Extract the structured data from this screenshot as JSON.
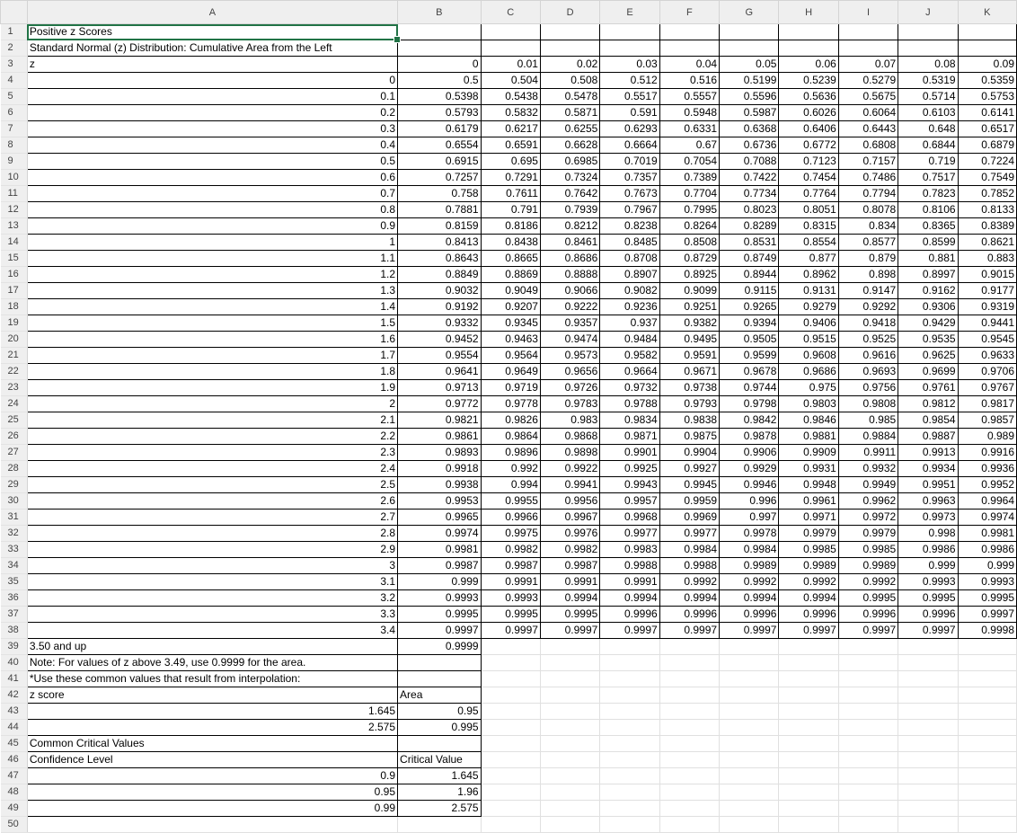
{
  "columns": [
    "A",
    "B",
    "C",
    "D",
    "E",
    "F",
    "G",
    "H",
    "I",
    "J",
    "K"
  ],
  "rows": [
    {
      "n": "1",
      "c": [
        "Positive z Scores"
      ]
    },
    {
      "n": "2",
      "c": [
        "Standard Normal (z) Distribution: Cumulative Area from the Left"
      ]
    },
    {
      "n": "3",
      "c": [
        "z",
        "0",
        "0.01",
        "0.02",
        "0.03",
        "0.04",
        "0.05",
        "0.06",
        "0.07",
        "0.08",
        "0.09"
      ]
    },
    {
      "n": "4",
      "c": [
        "0",
        "0.5",
        "0.504",
        "0.508",
        "0.512",
        "0.516",
        "0.5199",
        "0.5239",
        "0.5279",
        "0.5319",
        "0.5359"
      ]
    },
    {
      "n": "5",
      "c": [
        "0.1",
        "0.5398",
        "0.5438",
        "0.5478",
        "0.5517",
        "0.5557",
        "0.5596",
        "0.5636",
        "0.5675",
        "0.5714",
        "0.5753"
      ]
    },
    {
      "n": "6",
      "c": [
        "0.2",
        "0.5793",
        "0.5832",
        "0.5871",
        "0.591",
        "0.5948",
        "0.5987",
        "0.6026",
        "0.6064",
        "0.6103",
        "0.6141"
      ]
    },
    {
      "n": "7",
      "c": [
        "0.3",
        "0.6179",
        "0.6217",
        "0.6255",
        "0.6293",
        "0.6331",
        "0.6368",
        "0.6406",
        "0.6443",
        "0.648",
        "0.6517"
      ]
    },
    {
      "n": "8",
      "c": [
        "0.4",
        "0.6554",
        "0.6591",
        "0.6628",
        "0.6664",
        "0.67",
        "0.6736",
        "0.6772",
        "0.6808",
        "0.6844",
        "0.6879"
      ]
    },
    {
      "n": "9",
      "c": [
        "0.5",
        "0.6915",
        "0.695",
        "0.6985",
        "0.7019",
        "0.7054",
        "0.7088",
        "0.7123",
        "0.7157",
        "0.719",
        "0.7224"
      ]
    },
    {
      "n": "10",
      "c": [
        "0.6",
        "0.7257",
        "0.7291",
        "0.7324",
        "0.7357",
        "0.7389",
        "0.7422",
        "0.7454",
        "0.7486",
        "0.7517",
        "0.7549"
      ]
    },
    {
      "n": "11",
      "c": [
        "0.7",
        "0.758",
        "0.7611",
        "0.7642",
        "0.7673",
        "0.7704",
        "0.7734",
        "0.7764",
        "0.7794",
        "0.7823",
        "0.7852"
      ]
    },
    {
      "n": "12",
      "c": [
        "0.8",
        "0.7881",
        "0.791",
        "0.7939",
        "0.7967",
        "0.7995",
        "0.8023",
        "0.8051",
        "0.8078",
        "0.8106",
        "0.8133"
      ]
    },
    {
      "n": "13",
      "c": [
        "0.9",
        "0.8159",
        "0.8186",
        "0.8212",
        "0.8238",
        "0.8264",
        "0.8289",
        "0.8315",
        "0.834",
        "0.8365",
        "0.8389"
      ]
    },
    {
      "n": "14",
      "c": [
        "1",
        "0.8413",
        "0.8438",
        "0.8461",
        "0.8485",
        "0.8508",
        "0.8531",
        "0.8554",
        "0.8577",
        "0.8599",
        "0.8621"
      ]
    },
    {
      "n": "15",
      "c": [
        "1.1",
        "0.8643",
        "0.8665",
        "0.8686",
        "0.8708",
        "0.8729",
        "0.8749",
        "0.877",
        "0.879",
        "0.881",
        "0.883"
      ]
    },
    {
      "n": "16",
      "c": [
        "1.2",
        "0.8849",
        "0.8869",
        "0.8888",
        "0.8907",
        "0.8925",
        "0.8944",
        "0.8962",
        "0.898",
        "0.8997",
        "0.9015"
      ]
    },
    {
      "n": "17",
      "c": [
        "1.3",
        "0.9032",
        "0.9049",
        "0.9066",
        "0.9082",
        "0.9099",
        "0.9115",
        "0.9131",
        "0.9147",
        "0.9162",
        "0.9177"
      ]
    },
    {
      "n": "18",
      "c": [
        "1.4",
        "0.9192",
        "0.9207",
        "0.9222",
        "0.9236",
        "0.9251",
        "0.9265",
        "0.9279",
        "0.9292",
        "0.9306",
        "0.9319"
      ]
    },
    {
      "n": "19",
      "c": [
        "1.5",
        "0.9332",
        "0.9345",
        "0.9357",
        "0.937",
        "0.9382",
        "0.9394",
        "0.9406",
        "0.9418",
        "0.9429",
        "0.9441"
      ]
    },
    {
      "n": "20",
      "c": [
        "1.6",
        "0.9452",
        "0.9463",
        "0.9474",
        "0.9484",
        "0.9495",
        "0.9505",
        "0.9515",
        "0.9525",
        "0.9535",
        "0.9545"
      ]
    },
    {
      "n": "21",
      "c": [
        "1.7",
        "0.9554",
        "0.9564",
        "0.9573",
        "0.9582",
        "0.9591",
        "0.9599",
        "0.9608",
        "0.9616",
        "0.9625",
        "0.9633"
      ]
    },
    {
      "n": "22",
      "c": [
        "1.8",
        "0.9641",
        "0.9649",
        "0.9656",
        "0.9664",
        "0.9671",
        "0.9678",
        "0.9686",
        "0.9693",
        "0.9699",
        "0.9706"
      ]
    },
    {
      "n": "23",
      "c": [
        "1.9",
        "0.9713",
        "0.9719",
        "0.9726",
        "0.9732",
        "0.9738",
        "0.9744",
        "0.975",
        "0.9756",
        "0.9761",
        "0.9767"
      ]
    },
    {
      "n": "24",
      "c": [
        "2",
        "0.9772",
        "0.9778",
        "0.9783",
        "0.9788",
        "0.9793",
        "0.9798",
        "0.9803",
        "0.9808",
        "0.9812",
        "0.9817"
      ]
    },
    {
      "n": "25",
      "c": [
        "2.1",
        "0.9821",
        "0.9826",
        "0.983",
        "0.9834",
        "0.9838",
        "0.9842",
        "0.9846",
        "0.985",
        "0.9854",
        "0.9857"
      ]
    },
    {
      "n": "26",
      "c": [
        "2.2",
        "0.9861",
        "0.9864",
        "0.9868",
        "0.9871",
        "0.9875",
        "0.9878",
        "0.9881",
        "0.9884",
        "0.9887",
        "0.989"
      ]
    },
    {
      "n": "27",
      "c": [
        "2.3",
        "0.9893",
        "0.9896",
        "0.9898",
        "0.9901",
        "0.9904",
        "0.9906",
        "0.9909",
        "0.9911",
        "0.9913",
        "0.9916"
      ]
    },
    {
      "n": "28",
      "c": [
        "2.4",
        "0.9918",
        "0.992",
        "0.9922",
        "0.9925",
        "0.9927",
        "0.9929",
        "0.9931",
        "0.9932",
        "0.9934",
        "0.9936"
      ]
    },
    {
      "n": "29",
      "c": [
        "2.5",
        "0.9938",
        "0.994",
        "0.9941",
        "0.9943",
        "0.9945",
        "0.9946",
        "0.9948",
        "0.9949",
        "0.9951",
        "0.9952"
      ]
    },
    {
      "n": "30",
      "c": [
        "2.6",
        "0.9953",
        "0.9955",
        "0.9956",
        "0.9957",
        "0.9959",
        "0.996",
        "0.9961",
        "0.9962",
        "0.9963",
        "0.9964"
      ]
    },
    {
      "n": "31",
      "c": [
        "2.7",
        "0.9965",
        "0.9966",
        "0.9967",
        "0.9968",
        "0.9969",
        "0.997",
        "0.9971",
        "0.9972",
        "0.9973",
        "0.9974"
      ]
    },
    {
      "n": "32",
      "c": [
        "2.8",
        "0.9974",
        "0.9975",
        "0.9976",
        "0.9977",
        "0.9977",
        "0.9978",
        "0.9979",
        "0.9979",
        "0.998",
        "0.9981"
      ]
    },
    {
      "n": "33",
      "c": [
        "2.9",
        "0.9981",
        "0.9982",
        "0.9982",
        "0.9983",
        "0.9984",
        "0.9984",
        "0.9985",
        "0.9985",
        "0.9986",
        "0.9986"
      ]
    },
    {
      "n": "34",
      "c": [
        "3",
        "0.9987",
        "0.9987",
        "0.9987",
        "0.9988",
        "0.9988",
        "0.9989",
        "0.9989",
        "0.9989",
        "0.999",
        "0.999"
      ]
    },
    {
      "n": "35",
      "c": [
        "3.1",
        "0.999",
        "0.9991",
        "0.9991",
        "0.9991",
        "0.9992",
        "0.9992",
        "0.9992",
        "0.9992",
        "0.9993",
        "0.9993"
      ]
    },
    {
      "n": "36",
      "c": [
        "3.2",
        "0.9993",
        "0.9993",
        "0.9994",
        "0.9994",
        "0.9994",
        "0.9994",
        "0.9994",
        "0.9995",
        "0.9995",
        "0.9995"
      ]
    },
    {
      "n": "37",
      "c": [
        "3.3",
        "0.9995",
        "0.9995",
        "0.9995",
        "0.9996",
        "0.9996",
        "0.9996",
        "0.9996",
        "0.9996",
        "0.9996",
        "0.9997"
      ]
    },
    {
      "n": "38",
      "c": [
        "3.4",
        "0.9997",
        "0.9997",
        "0.9997",
        "0.9997",
        "0.9997",
        "0.9997",
        "0.9997",
        "0.9997",
        "0.9997",
        "0.9998"
      ]
    },
    {
      "n": "39",
      "c": [
        "3.50 and up",
        "0.9999"
      ]
    },
    {
      "n": "40",
      "c": [
        "Note: For values of z above 3.49, use 0.9999 for the area."
      ]
    },
    {
      "n": "41",
      "c": [
        "*Use these common values that result from interpolation:"
      ]
    },
    {
      "n": "42",
      "c": [
        "z score",
        "Area"
      ]
    },
    {
      "n": "43",
      "c": [
        "1.645",
        "0.95"
      ]
    },
    {
      "n": "44",
      "c": [
        "2.575",
        "0.995"
      ]
    },
    {
      "n": "45",
      "c": [
        "Common Critical Values"
      ]
    },
    {
      "n": "46",
      "c": [
        "Confidence Level",
        "Critical Value"
      ]
    },
    {
      "n": "47",
      "c": [
        "0.9",
        "1.645"
      ]
    },
    {
      "n": "48",
      "c": [
        "0.95",
        "1.96"
      ]
    },
    {
      "n": "49",
      "c": [
        "0.99",
        "2.575"
      ]
    },
    {
      "n": "50",
      "c": []
    }
  ],
  "selected_cell": "A1",
  "colors": {
    "selection": "#217346",
    "header_bg": "#efefef"
  }
}
